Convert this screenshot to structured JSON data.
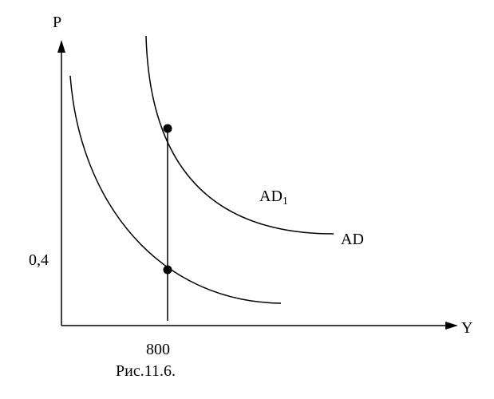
{
  "axes": {
    "y_label": "P",
    "x_label": "Y"
  },
  "ticks": {
    "y": "0,4",
    "x": "800"
  },
  "curves": [
    {
      "base": "AD",
      "sub": "1"
    },
    {
      "base": "AD"
    }
  ],
  "caption": "Рис.11.6."
}
